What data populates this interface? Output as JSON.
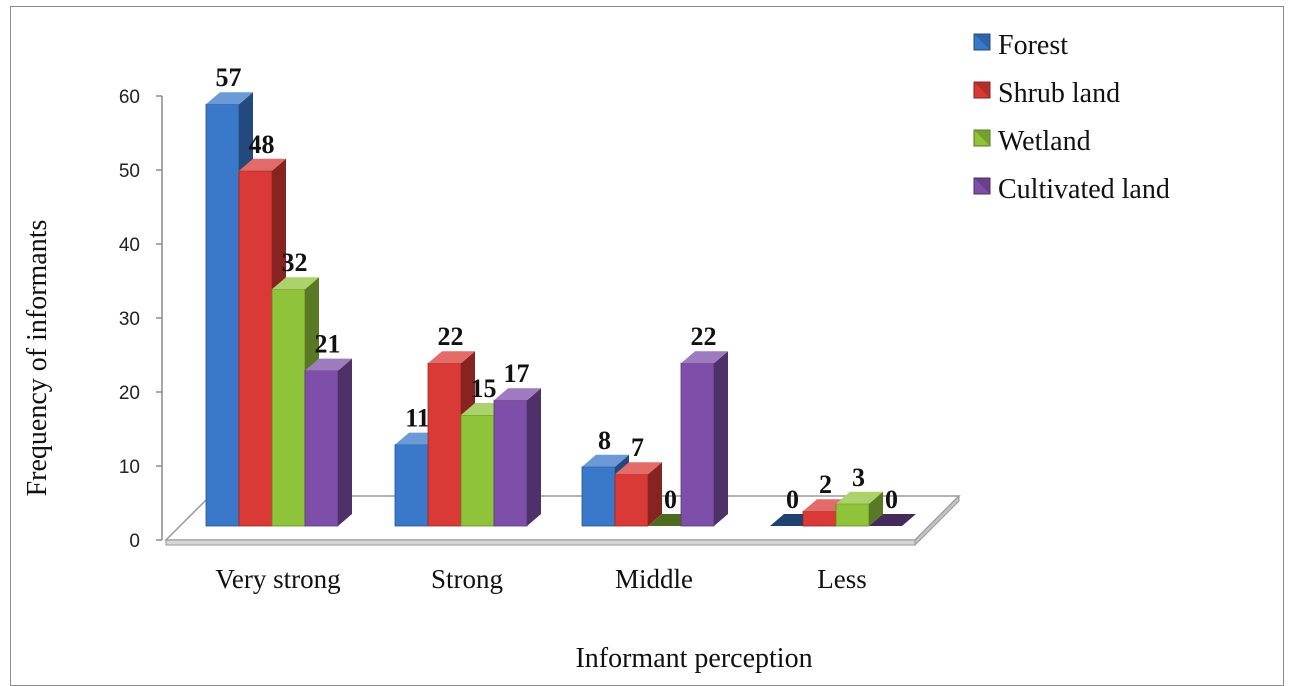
{
  "chart_data": {
    "type": "bar",
    "title": "",
    "xlabel": "Informant perception",
    "ylabel": "Frequency of informants",
    "ylim": [
      0,
      60
    ],
    "yticks": [
      0,
      10,
      20,
      30,
      40,
      50,
      60
    ],
    "categories": [
      "Very strong",
      "Strong",
      "Middle",
      "Less"
    ],
    "series": [
      {
        "name": "Forest",
        "values": [
          57,
          11,
          8,
          0
        ],
        "color": "#3a78c9"
      },
      {
        "name": "Shrub land",
        "values": [
          48,
          22,
          7,
          2
        ],
        "color": "#d93a36"
      },
      {
        "name": "Wetland",
        "values": [
          32,
          15,
          0,
          3
        ],
        "color": "#8fc33a"
      },
      {
        "name": "Cultivated land",
        "values": [
          21,
          17,
          22,
          0
        ],
        "color": "#7d4fa8"
      }
    ],
    "legend_position": "top-right",
    "grid": false,
    "style": "3d-clustered-column"
  }
}
